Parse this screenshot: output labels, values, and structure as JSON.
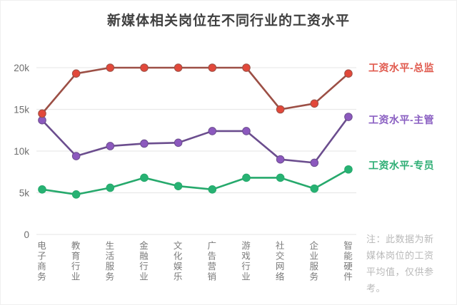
{
  "title": "新媒体相关岗位在不同行业的工资水平",
  "note": "注：此数据为新媒体岗位的工资平均值，仅供参考。",
  "colors": {
    "background": "#ffffff",
    "title_text": "#3f3f3f",
    "axis_label": "#6e6e6e",
    "category_label": "#7a7a7a",
    "grid_line": "#e9e9e9",
    "note_text": "#b9b9b9"
  },
  "chart_data": {
    "type": "line",
    "title": "新媒体相关岗位在不同行业的工资水平",
    "xlabel": "",
    "ylabel": "",
    "grid": true,
    "legend_position": "right",
    "ylim": [
      0,
      21.5
    ],
    "y_ticks": [
      {
        "label": "20k",
        "value": 20
      },
      {
        "label": "15k",
        "value": 15
      },
      {
        "label": "10k",
        "value": 10
      },
      {
        "label": "5k",
        "value": 5
      },
      {
        "label": "0",
        "value": 0
      }
    ],
    "categories": [
      "电子商务",
      "教育行业",
      "生活服务",
      "金融行业",
      "文化娱乐",
      "广告营销",
      "游戏行业",
      "社交网络",
      "企业服务",
      "智能硬件"
    ],
    "series": [
      {
        "key": "director",
        "name": "工资水平-总监",
        "values": [
          14.5,
          19.3,
          20,
          20,
          20,
          20,
          20,
          15,
          15.7,
          19.3
        ],
        "marker_color": "#e2483a",
        "line_color": "#9c4f45",
        "legend_color": "#e05a4e"
      },
      {
        "key": "supervisor",
        "name": "工资水平-主管",
        "values": [
          13.7,
          9.4,
          10.6,
          10.9,
          11,
          12.4,
          12.4,
          9,
          8.6,
          14.1
        ],
        "marker_color": "#8c59be",
        "line_color": "#6b4d8e",
        "legend_color": "#8a5fc2"
      },
      {
        "key": "specialist",
        "name": "工资水平-专员",
        "values": [
          5.4,
          4.8,
          5.6,
          6.8,
          5.8,
          5.4,
          6.8,
          6.8,
          5.5,
          7.8
        ],
        "marker_color": "#27b273",
        "line_color": "#26a96c",
        "legend_color": "#2eae75"
      }
    ]
  }
}
